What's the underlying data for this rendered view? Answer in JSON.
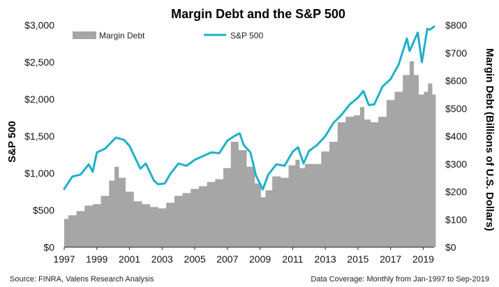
{
  "chart_data": {
    "type": "bar+line",
    "title": "Margin Debt and the S&P 500",
    "y_left_label": "S&P 500",
    "y_right_label": "Margin Debt (Billions of U.S. Dollars)",
    "y_left_ticks": [
      "$0",
      "$500",
      "$1,000",
      "$1,500",
      "$2,000",
      "$2,500",
      "$3,000"
    ],
    "y_left_range": [
      0,
      3000
    ],
    "y_right_ticks": [
      "$0",
      "$100",
      "$200",
      "$300",
      "$400",
      "$500",
      "$600",
      "$700",
      "$800"
    ],
    "y_right_range": [
      0,
      800
    ],
    "x_ticks": [
      "1997",
      "1999",
      "2001",
      "2003",
      "2005",
      "2007",
      "2009",
      "2011",
      "2013",
      "2015",
      "2017",
      "2019"
    ],
    "x_range": [
      "1997-01",
      "2019-09"
    ],
    "grid": false,
    "legend_position": "top-left",
    "series": [
      {
        "name": "Margin Debt",
        "kind": "bar",
        "axis": "right",
        "color": "#a6a6a6",
        "x": [
          "1997-01",
          "1997-07",
          "1998-01",
          "1998-07",
          "1999-01",
          "1999-07",
          "2000-01",
          "2000-03",
          "2000-07",
          "2001-01",
          "2001-07",
          "2002-01",
          "2002-07",
          "2003-01",
          "2003-07",
          "2004-01",
          "2004-07",
          "2005-01",
          "2005-07",
          "2006-01",
          "2006-07",
          "2007-01",
          "2007-06",
          "2007-12",
          "2008-06",
          "2008-12",
          "2009-03",
          "2009-07",
          "2010-01",
          "2010-07",
          "2011-01",
          "2011-05",
          "2011-07",
          "2012-01",
          "2012-07",
          "2013-01",
          "2013-07",
          "2014-01",
          "2014-07",
          "2015-01",
          "2015-04",
          "2015-07",
          "2016-01",
          "2016-07",
          "2017-01",
          "2017-07",
          "2018-01",
          "2018-05",
          "2018-07",
          "2018-12",
          "2019-03",
          "2019-06",
          "2019-09"
        ],
        "values": [
          102,
          115,
          130,
          150,
          155,
          185,
          240,
          290,
          250,
          200,
          165,
          155,
          145,
          140,
          160,
          185,
          195,
          210,
          220,
          235,
          245,
          285,
          380,
          350,
          290,
          230,
          180,
          205,
          255,
          250,
          295,
          315,
          285,
          300,
          300,
          345,
          380,
          450,
          470,
          475,
          505,
          460,
          450,
          470,
          530,
          560,
          620,
          670,
          620,
          550,
          560,
          590,
          550
        ]
      },
      {
        "name": "S&P 500",
        "kind": "line",
        "axis": "left",
        "color": "#1fb0c8",
        "x": [
          "1997-01",
          "1997-07",
          "1998-01",
          "1998-07",
          "1998-10",
          "1999-01",
          "1999-07",
          "2000-03",
          "2000-09",
          "2001-01",
          "2001-09",
          "2002-01",
          "2002-07",
          "2002-10",
          "2003-03",
          "2003-07",
          "2004-01",
          "2004-07",
          "2005-01",
          "2005-07",
          "2006-01",
          "2006-07",
          "2007-01",
          "2007-06",
          "2007-10",
          "2008-01",
          "2008-06",
          "2008-10",
          "2009-03",
          "2009-07",
          "2010-01",
          "2010-07",
          "2011-01",
          "2011-05",
          "2011-09",
          "2012-01",
          "2012-07",
          "2013-01",
          "2013-07",
          "2014-01",
          "2014-07",
          "2015-01",
          "2015-05",
          "2015-09",
          "2016-01",
          "2016-07",
          "2017-01",
          "2017-07",
          "2018-01",
          "2018-03",
          "2018-09",
          "2018-12",
          "2019-04",
          "2019-06",
          "2019-09"
        ],
        "values": [
          786,
          955,
          980,
          1120,
          1020,
          1280,
          1330,
          1480,
          1450,
          1370,
          1060,
          1130,
          900,
          850,
          860,
          990,
          1130,
          1100,
          1180,
          1230,
          1280,
          1270,
          1440,
          1500,
          1540,
          1380,
          1280,
          970,
          780,
          980,
          1120,
          1100,
          1290,
          1350,
          1130,
          1300,
          1380,
          1500,
          1680,
          1790,
          1930,
          2020,
          2110,
          1920,
          1930,
          2170,
          2270,
          2470,
          2820,
          2650,
          2900,
          2500,
          2950,
          2940,
          2980
        ]
      }
    ]
  },
  "footer": {
    "source": "Source: FINRA, Valens Research Analysis",
    "coverage": "Data Coverage:  Monthly from Jan-1997 to Sep-2019"
  }
}
